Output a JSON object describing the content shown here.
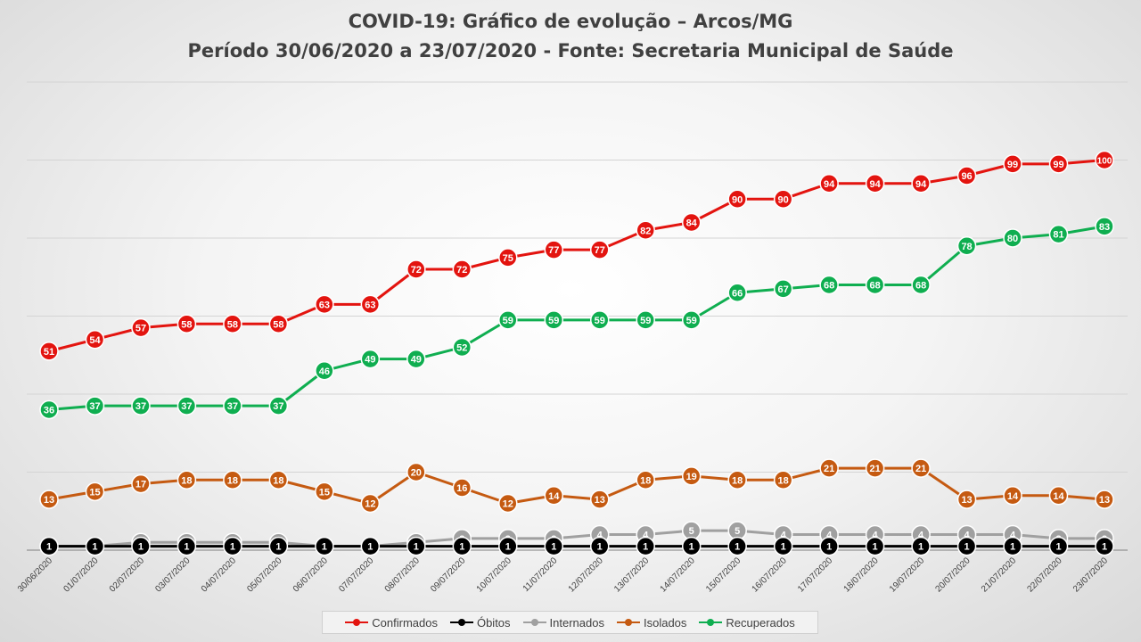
{
  "title_line1": "COVID-19: Gráfico de evolução – Arcos/MG",
  "title_line2": "Período 30/06/2020 a 23/07/2020 - Fonte: Secretaria Municipal de Saúde",
  "chart_data": {
    "type": "line",
    "title": "COVID-19: Gráfico de evolução – Arcos/MG — Período 30/06/2020 a 23/07/2020 - Fonte: Secretaria Municipal de Saúde",
    "xlabel": "",
    "ylabel": "",
    "ylim": [
      0,
      120
    ],
    "grid": true,
    "legend_position": "bottom",
    "categories": [
      "30/06/2020",
      "01/07/2020",
      "02/07/2020",
      "03/07/2020",
      "04/07/2020",
      "05/07/2020",
      "06/07/2020",
      "07/07/2020",
      "08/07/2020",
      "09/07/2020",
      "10/07/2020",
      "11/07/2020",
      "12/07/2020",
      "13/07/2020",
      "14/07/2020",
      "15/07/2020",
      "16/07/2020",
      "17/07/2020",
      "18/07/2020",
      "19/07/2020",
      "20/07/2020",
      "21/07/2020",
      "22/07/2020",
      "23/07/2020"
    ],
    "series": [
      {
        "name": "Confirmados",
        "color": "#e3140f",
        "values": [
          51,
          54,
          57,
          58,
          58,
          58,
          63,
          63,
          72,
          72,
          75,
          77,
          77,
          82,
          84,
          90,
          90,
          94,
          94,
          94,
          96,
          99,
          99,
          100
        ]
      },
      {
        "name": "Óbitos",
        "color": "#000000",
        "values": [
          1,
          1,
          1,
          1,
          1,
          1,
          1,
          1,
          1,
          1,
          1,
          1,
          1,
          1,
          1,
          1,
          1,
          1,
          1,
          1,
          1,
          1,
          1,
          1
        ]
      },
      {
        "name": "Internados",
        "color": "#a0a0a0",
        "values": [
          1,
          1,
          2,
          2,
          2,
          2,
          1,
          1,
          2,
          3,
          3,
          3,
          4,
          4,
          5,
          5,
          4,
          4,
          4,
          4,
          4,
          4,
          3,
          3
        ]
      },
      {
        "name": "Isolados",
        "color": "#c55a11",
        "values": [
          13,
          15,
          17,
          18,
          18,
          18,
          15,
          12,
          20,
          16,
          12,
          14,
          13,
          18,
          19,
          18,
          18,
          21,
          21,
          21,
          13,
          14,
          14,
          13
        ]
      },
      {
        "name": "Recuperados",
        "color": "#0fae50",
        "values": [
          36,
          37,
          37,
          37,
          37,
          37,
          46,
          49,
          49,
          52,
          59,
          59,
          59,
          59,
          59,
          66,
          67,
          68,
          68,
          68,
          78,
          80,
          81,
          83
        ]
      }
    ]
  }
}
